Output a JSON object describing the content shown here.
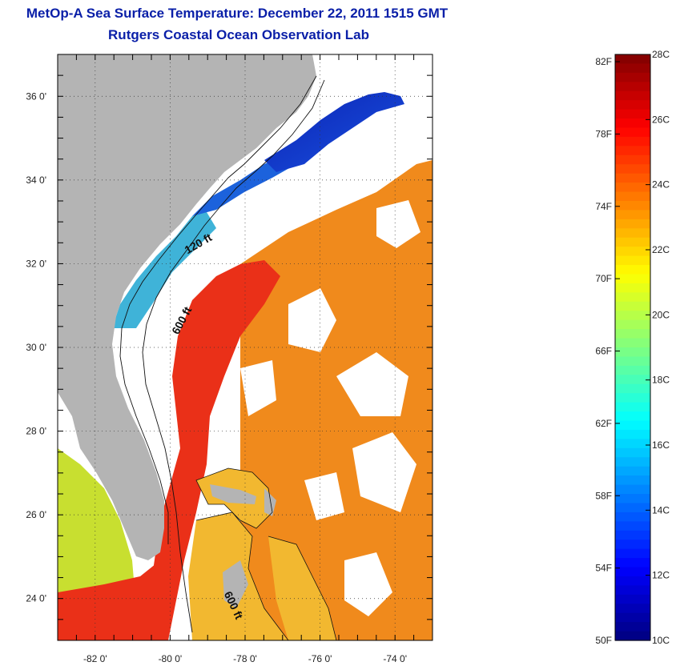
{
  "title": "MetOp-A Sea Surface Temperature:  December 22, 2011 1515 GMT",
  "subtitle": "Rutgers Coastal Ocean Observation Lab",
  "colors": {
    "land": "#b4b4b4",
    "cloud": "#ffffff",
    "title": "#0a1fa8"
  },
  "map": {
    "lon_range": [
      -83,
      -73
    ],
    "lat_range": [
      23,
      37
    ],
    "lon_ticks": [
      {
        "value": -82,
        "label": "-82 0'"
      },
      {
        "value": -80,
        "label": "-80 0'"
      },
      {
        "value": -78,
        "label": "-78 0'"
      },
      {
        "value": -76,
        "label": "-76 0'"
      },
      {
        "value": -74,
        "label": "-74 0'"
      }
    ],
    "lat_ticks": [
      {
        "value": 36,
        "label": "36 0'"
      },
      {
        "value": 34,
        "label": "34 0'"
      },
      {
        "value": 32,
        "label": "32 0'"
      },
      {
        "value": 30,
        "label": "30 0'"
      },
      {
        "value": 28,
        "label": "28 0'"
      },
      {
        "value": 26,
        "label": "26 0'"
      },
      {
        "value": 24,
        "label": "24 0'"
      }
    ],
    "contour_labels": [
      {
        "text": "120 ft",
        "lon": -79.2,
        "lat": 32.4,
        "rotate": -30
      },
      {
        "text": "600 ft",
        "lon": -79.6,
        "lat": 30.6,
        "rotate": -62
      },
      {
        "text": "600 ft",
        "lon": -78.4,
        "lat": 23.8,
        "rotate": 65
      }
    ]
  },
  "colorbar": {
    "min_c": 10,
    "max_c": 28,
    "fahrenheit_labels": [
      {
        "value": 82,
        "label": "82F"
      },
      {
        "value": 78,
        "label": "78F"
      },
      {
        "value": 74,
        "label": "74F"
      },
      {
        "value": 70,
        "label": "70F"
      },
      {
        "value": 66,
        "label": "66F"
      },
      {
        "value": 62,
        "label": "62F"
      },
      {
        "value": 58,
        "label": "58F"
      },
      {
        "value": 54,
        "label": "54F"
      },
      {
        "value": 50,
        "label": "50F"
      }
    ],
    "celsius_labels": [
      {
        "value": 28,
        "label": "28C"
      },
      {
        "value": 26,
        "label": "26C"
      },
      {
        "value": 24,
        "label": "24C"
      },
      {
        "value": 22,
        "label": "22C"
      },
      {
        "value": 20,
        "label": "20C"
      },
      {
        "value": 18,
        "label": "18C"
      },
      {
        "value": 16,
        "label": "16C"
      },
      {
        "value": 14,
        "label": "14C"
      },
      {
        "value": 12,
        "label": "12C"
      },
      {
        "value": 10,
        "label": "10C"
      }
    ]
  }
}
